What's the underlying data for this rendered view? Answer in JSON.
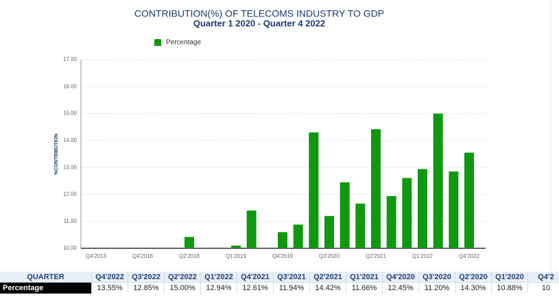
{
  "chart_data": {
    "type": "bar",
    "title": "CONTRIBUTION(%) OF TELECOMS INDUSTRY TO GDP",
    "subtitle": "Quarter 1 2020 - Quarter 4 2022",
    "y_label": "%CONTRIBUTION",
    "categories": [
      "Q4'2013",
      null,
      null,
      "Q4'2016",
      null,
      null,
      "Q2'2018",
      null,
      null,
      "Q1'2019",
      null,
      null,
      "Q4'2019",
      null,
      null,
      "Q3'2020",
      null,
      null,
      "Q2'2021",
      null,
      null,
      "Q1'2022",
      null,
      null,
      "Q4'2022"
    ],
    "series": [
      {
        "name": "Percentage",
        "color": "#109810",
        "values": [
          null,
          null,
          null,
          null,
          null,
          null,
          10.42,
          null,
          null,
          10.1,
          11.4,
          null,
          10.6,
          10.88,
          14.3,
          11.2,
          12.45,
          11.66,
          14.42,
          11.94,
          12.61,
          12.94,
          15.0,
          12.85,
          13.55
        ]
      }
    ],
    "ylim": [
      10,
      17
    ],
    "yticks": [
      {
        "value": 10,
        "label": "10.00"
      },
      {
        "value": 11,
        "label": "11.00"
      },
      {
        "value": 12,
        "label": "12.00"
      },
      {
        "value": 13,
        "label": "13.00"
      },
      {
        "value": 14,
        "label": "14.00"
      },
      {
        "value": 15,
        "label": "15.00"
      },
      {
        "value": 16,
        "label": "16.00"
      },
      {
        "value": 17,
        "label": "17.00"
      }
    ],
    "grid": true,
    "legend": "top"
  },
  "table": {
    "header": [
      "QUARTER",
      "Q4'2022",
      "Q3'2022",
      "Q2'2022",
      "Q1'2022",
      "Q4'2021",
      "Q3'2021",
      "Q2'2021",
      "Q1'2021",
      "Q4'2020",
      "Q3'2020",
      "Q2'2020",
      "Q1'2020",
      "Q4'2"
    ],
    "rows": [
      [
        "Percentage",
        "13.55%",
        "12.85%",
        "15.00%",
        "12.94%",
        "12.61%",
        "11.94%",
        "14.42%",
        "11.66%",
        "12.45%",
        "11.20%",
        "14.30%",
        "10.88%",
        "10"
      ]
    ]
  }
}
